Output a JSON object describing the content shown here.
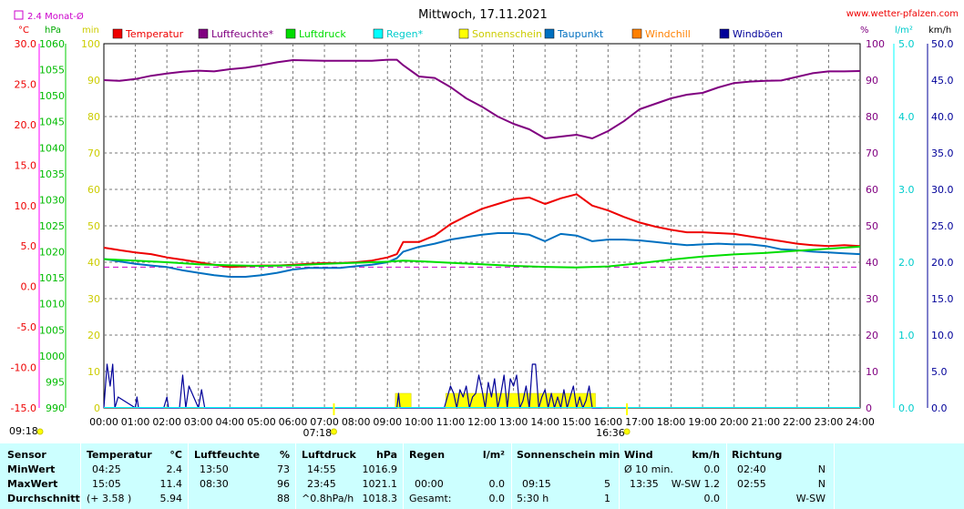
{
  "chart_data": {
    "type": "line",
    "title": "Mittwoch, 17.11.2021",
    "source": "www.wetter-pfalzen.com",
    "monthly_avg_label": "2.4 Monat-Ø",
    "axis_units": {
      "temp": "°C",
      "pressure": "hPa",
      "sunshine": "min",
      "humidity": "%",
      "rain": "l/m²",
      "wind": "km/h"
    },
    "axes": {
      "temp": {
        "min": -15,
        "max": 30,
        "ticks": [
          "-15.0",
          "-10.0",
          "-5.0",
          "0.0",
          "5.0",
          "10.0",
          "15.0",
          "20.0",
          "25.0",
          "30.0"
        ]
      },
      "pressure": {
        "min": 990,
        "max": 1060,
        "ticks": [
          "990",
          "995",
          "1000",
          "1005",
          "1010",
          "1015",
          "1020",
          "1025",
          "1030",
          "1035",
          "1040",
          "1045",
          "1050",
          "1055",
          "1060"
        ]
      },
      "sunshine": {
        "min": 0,
        "max": 100,
        "ticks": [
          "0",
          "10",
          "20",
          "30",
          "40",
          "50",
          "60",
          "70",
          "80",
          "90",
          "100"
        ]
      },
      "humidity": {
        "min": 0,
        "max": 100,
        "ticks": [
          "0",
          "10",
          "20",
          "30",
          "40",
          "50",
          "60",
          "70",
          "80",
          "90",
          "100"
        ]
      },
      "rain": {
        "min": 0,
        "max": 5,
        "ticks": [
          "0.0",
          "1.0",
          "2.0",
          "3.0",
          "4.0",
          "5.0"
        ]
      },
      "wind": {
        "min": 0,
        "max": 50,
        "ticks": [
          "0.0",
          "5.0",
          "10.0",
          "15.0",
          "20.0",
          "25.0",
          "30.0",
          "35.0",
          "40.0",
          "45.0",
          "50.0"
        ]
      }
    },
    "x_ticks": [
      "00:00",
      "01:00",
      "02:00",
      "03:00",
      "04:00",
      "05:00",
      "06:00",
      "07:00",
      "08:00",
      "09:00",
      "10:00",
      "11:00",
      "12:00",
      "13:00",
      "14:00",
      "15:00",
      "16:00",
      "17:00",
      "18:00",
      "19:00",
      "20:00",
      "21:00",
      "22:00",
      "23:00",
      "24:00"
    ],
    "sun_events": [
      {
        "time": "09:18",
        "hour": 9.3
      },
      {
        "time": "07:18",
        "hour": 7.3
      },
      {
        "time": "16:36",
        "hour": 16.6
      }
    ],
    "monthly_avg_temp": 2.4,
    "legend": [
      {
        "name": "Temperatur",
        "color": "#ee0000"
      },
      {
        "name": "Luftfeuchte*",
        "color": "#800080"
      },
      {
        "name": "Luftdruck",
        "color": "#00dd00"
      },
      {
        "name": "Regen*",
        "color": "#00ffff"
      },
      {
        "name": "Sonnenschein",
        "color": "#ffff00"
      },
      {
        "name": "Taupunkt",
        "color": "#0070c0"
      },
      {
        "name": "Windchill",
        "color": "#ff8000"
      },
      {
        "name": "Windböen",
        "color": "#000099"
      }
    ],
    "series": [
      {
        "key": "temperature",
        "name": "Temperatur",
        "axis": "temp",
        "color": "#ee0000",
        "x": [
          0,
          0.5,
          1,
          1.5,
          2,
          2.5,
          3,
          3.5,
          4,
          4.5,
          5,
          5.5,
          6,
          6.5,
          7,
          7.5,
          8,
          8.5,
          9,
          9.3,
          9.5,
          10,
          10.5,
          11,
          11.5,
          12,
          12.5,
          13,
          13.5,
          14,
          14.5,
          15,
          15.5,
          16,
          16.5,
          17,
          17.5,
          18,
          18.5,
          19,
          19.5,
          20,
          20.5,
          21,
          21.5,
          22,
          22.5,
          23,
          23.5,
          24
        ],
        "y": [
          4.8,
          4.5,
          4.2,
          4.0,
          3.6,
          3.3,
          3.0,
          2.7,
          2.4,
          2.5,
          2.6,
          2.6,
          2.7,
          2.8,
          2.9,
          2.9,
          3.0,
          3.2,
          3.6,
          4.0,
          5.5,
          5.5,
          6.3,
          7.7,
          8.7,
          9.6,
          10.2,
          10.8,
          11.0,
          10.2,
          10.9,
          11.4,
          10.0,
          9.4,
          8.6,
          7.9,
          7.4,
          7.0,
          6.7,
          6.7,
          6.6,
          6.5,
          6.2,
          5.9,
          5.6,
          5.3,
          5.1,
          5.0,
          5.1,
          5.0
        ]
      },
      {
        "key": "dewpoint",
        "name": "Taupunkt",
        "axis": "temp",
        "color": "#0070c0",
        "x": [
          0,
          0.5,
          1,
          1.5,
          2,
          2.5,
          3,
          3.5,
          4,
          4.5,
          5,
          5.5,
          6,
          6.5,
          7,
          7.5,
          8,
          8.5,
          9,
          9.3,
          9.5,
          10,
          10.5,
          11,
          11.5,
          12,
          12.5,
          13,
          13.5,
          14,
          14.5,
          15,
          15.5,
          16,
          16.5,
          17,
          17.5,
          18,
          18.5,
          19,
          19.5,
          20,
          20.5,
          21,
          21.5,
          22,
          22.5,
          23,
          23.5,
          24
        ],
        "y": [
          3.4,
          3.1,
          2.8,
          2.6,
          2.4,
          2.0,
          1.7,
          1.4,
          1.2,
          1.2,
          1.4,
          1.7,
          2.1,
          2.3,
          2.3,
          2.3,
          2.5,
          2.7,
          3.0,
          3.5,
          4.3,
          4.9,
          5.3,
          5.8,
          6.1,
          6.4,
          6.6,
          6.6,
          6.4,
          5.6,
          6.5,
          6.3,
          5.6,
          5.8,
          5.8,
          5.7,
          5.5,
          5.3,
          5.1,
          5.2,
          5.3,
          5.2,
          5.2,
          5.0,
          4.6,
          4.5,
          4.3,
          4.2,
          4.1,
          4.0
        ]
      },
      {
        "key": "humidity",
        "name": "Luftfeuchte*",
        "axis": "humidity",
        "color": "#800080",
        "x": [
          0,
          0.5,
          1,
          1.5,
          2,
          2.5,
          3,
          3.5,
          4,
          4.5,
          5,
          5.5,
          6,
          6.5,
          7,
          7.5,
          8,
          8.5,
          9,
          9.3,
          9.5,
          10,
          10.5,
          11,
          11.5,
          12,
          12.5,
          13,
          13.5,
          14,
          14.5,
          15,
          15.5,
          16,
          16.5,
          17,
          17.5,
          18,
          18.5,
          19,
          19.5,
          20,
          20.5,
          21,
          21.5,
          22,
          22.5,
          23,
          23.5,
          24
        ],
        "y": [
          90,
          89.8,
          90.3,
          91.2,
          91.8,
          92.3,
          92.6,
          92.4,
          93,
          93.4,
          94.1,
          94.9,
          95.5,
          95.4,
          95.3,
          95.3,
          95.3,
          95.3,
          95.6,
          95.6,
          94.1,
          91,
          90.6,
          88.1,
          85,
          82.7,
          80,
          78,
          76.5,
          74,
          74.5,
          75,
          74,
          76,
          78.7,
          82,
          83.5,
          85,
          86,
          86.5,
          88,
          89.2,
          89.6,
          89.8,
          89.9,
          90.9,
          91.9,
          92.4,
          92.4,
          92.5
        ]
      },
      {
        "key": "pressure",
        "name": "Luftdruck",
        "axis": "pressure",
        "color": "#00dd00",
        "x": [
          0,
          1,
          2,
          3,
          4,
          5,
          6,
          7,
          8,
          9,
          9.5,
          10,
          11,
          12,
          13,
          14,
          15,
          16,
          17,
          18,
          19,
          20,
          21,
          22,
          23,
          24
        ],
        "y": [
          1018.6,
          1018.3,
          1018,
          1017.6,
          1017.4,
          1017.3,
          1017.4,
          1017.7,
          1017.9,
          1018.1,
          1018.3,
          1018.2,
          1017.9,
          1017.6,
          1017.3,
          1017.1,
          1017.0,
          1017.2,
          1017.8,
          1018.5,
          1019.1,
          1019.5,
          1019.8,
          1020.2,
          1020.6,
          1021.0
        ]
      }
    ],
    "sunshine": {
      "name": "Sonnenschein",
      "axis": "sunshine",
      "color": "#ffff00",
      "blocks": [
        [
          9.25,
          9.75
        ],
        [
          10.85,
          15.6
        ]
      ]
    },
    "gusts": {
      "name": "Windböen",
      "axis": "wind",
      "color": "#000099",
      "x": [
        0,
        0.1,
        0.2,
        0.28,
        0.35,
        0.45,
        1,
        1.05,
        1.1,
        1.9,
        2,
        2.05,
        2.4,
        2.5,
        2.6,
        2.7,
        3.0,
        3.1,
        3.2,
        9.3,
        9.35,
        9.4,
        10.8,
        10.9,
        11,
        11.1,
        11.2,
        11.3,
        11.4,
        11.5,
        11.6,
        11.7,
        11.8,
        11.9,
        12,
        12.1,
        12.2,
        12.3,
        12.4,
        12.5,
        12.6,
        12.7,
        12.8,
        12.9,
        13,
        13.1,
        13.2,
        13.3,
        13.4,
        13.5,
        13.6,
        13.7,
        13.8,
        13.9,
        14,
        14.1,
        14.2,
        14.3,
        14.4,
        14.5,
        14.6,
        14.7,
        14.8,
        14.9,
        15,
        15.1,
        15.2,
        15.3,
        15.4,
        15.5,
        15.6,
        15.7,
        15.8
      ],
      "y": [
        0,
        6,
        3,
        6,
        0,
        1.5,
        0,
        1.5,
        0,
        0,
        1.5,
        0,
        0,
        4.5,
        0,
        3,
        0,
        2.5,
        0,
        0,
        2,
        0,
        0,
        1.5,
        3,
        2,
        0,
        2.5,
        1.5,
        3,
        0,
        1.5,
        2,
        4.5,
        2.5,
        0,
        3.5,
        1.5,
        4,
        0,
        2,
        4.5,
        0,
        4,
        3,
        4.5,
        0,
        1,
        3,
        0,
        6,
        6,
        0,
        1.5,
        2.5,
        0,
        2,
        0,
        1.5,
        0,
        2.5,
        0,
        1.5,
        3,
        0,
        1.5,
        0,
        1,
        3,
        0,
        0,
        0,
        0
      ]
    }
  },
  "stats": {
    "headers": {
      "sensor": "Sensor",
      "temp": "Temperatur",
      "temp_unit": "°C",
      "hum": "Luftfeuchte",
      "hum_unit": "%",
      "press": "Luftdruck",
      "press_unit": "hPa",
      "rain": "Regen",
      "rain_unit": "l/m²",
      "sun": "Sonnenschein min",
      "wind": "Wind",
      "wind_unit": "km/h",
      "dir": "Richtung"
    },
    "min": {
      "label": "MinWert",
      "temp_time": "04:25",
      "temp_val": "2.4",
      "hum_time": "13:50",
      "hum_val": "73",
      "press_time": "14:55",
      "press_val": "1016.9",
      "wind_label": "Ø 10 min.",
      "wind_val": "0.0",
      "dir_time": "02:40",
      "dir_val": "N"
    },
    "max": {
      "label": "MaxWert",
      "temp_time": "15:05",
      "temp_val": "11.4",
      "hum_time": "08:30",
      "hum_val": "96",
      "press_time": "23:45",
      "press_val": "1021.1",
      "rain_time": "00:00",
      "rain_val": "0.0",
      "sun_time": "09:15",
      "sun_val": "5",
      "wind_time": "13:35",
      "wind_val": "W-SW 1.2",
      "dir_time": "02:55",
      "dir_val": "N"
    },
    "avg": {
      "label": "Durchschnitt",
      "temp_diff": "(+ 3.58 )",
      "temp_val": "5.94",
      "hum_val": "88",
      "press_trend": "^0.8hPa/h",
      "press_val": "1018.3",
      "rain_label": "Gesamt:",
      "rain_val": "0.0",
      "sun_time": "5:30 h",
      "sun_val": "1",
      "wind_val": "0.0",
      "dir_val": "W-SW"
    }
  }
}
